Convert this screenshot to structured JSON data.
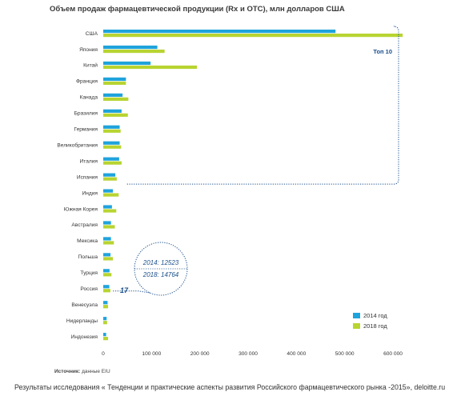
{
  "title": "Объем продаж фармацевтической продукции (Rx и OTC), млн долларов США",
  "source_label": "Источник:",
  "source_value": "данные EIU",
  "footer": "Результаты исследования « Тенденции и практические аспекты развития Российского фармацевтического рынка -2015», deloitte.ru",
  "colors": {
    "series_2014": "#1fa3dc",
    "series_2018": "#b8d431",
    "annotation": "#1a4e8a",
    "axis": "#cccccc"
  },
  "top10_label": "Топ 10",
  "russia_rank_label": "17",
  "russia_callout": {
    "line_2014": "2014: 12523",
    "line_2018": "2018: 14764"
  },
  "chart_data": {
    "type": "bar",
    "orientation": "horizontal",
    "title": "Объем продаж фармацевтической продукции (Rx и OTC), млн долларов США",
    "categories": [
      "США",
      "Япония",
      "Китай",
      "Франция",
      "Канада",
      "Бразилия",
      "Германия",
      "Великобритания",
      "Италия",
      "Испания",
      "Индия",
      "Южная Корея",
      "Австралия",
      "Мексика",
      "Польша",
      "Турция",
      "Россия",
      "Венесуэла",
      "Нидерланды",
      "Индонезия"
    ],
    "series": [
      {
        "name": "2014 год",
        "values": [
          481000,
          112000,
          98000,
          47000,
          40000,
          38000,
          34000,
          34000,
          33000,
          25000,
          20000,
          18000,
          16000,
          16000,
          15000,
          13000,
          12523,
          9000,
          7000,
          6000
        ]
      },
      {
        "name": "2018 год",
        "values": [
          620000,
          127000,
          194000,
          47000,
          52000,
          51000,
          36000,
          37000,
          38000,
          28000,
          32000,
          27000,
          24000,
          22000,
          20000,
          17000,
          14764,
          10000,
          8000,
          10000
        ]
      }
    ],
    "xlim": [
      0,
      600000
    ],
    "xticks": [
      0,
      100000,
      200000,
      300000,
      400000,
      500000,
      600000
    ],
    "xtick_labels": [
      "0",
      "100 000",
      "200 000",
      "300 000",
      "400 000",
      "500 000",
      "600 000"
    ],
    "legend_position": "bottom-right",
    "grid": false
  }
}
